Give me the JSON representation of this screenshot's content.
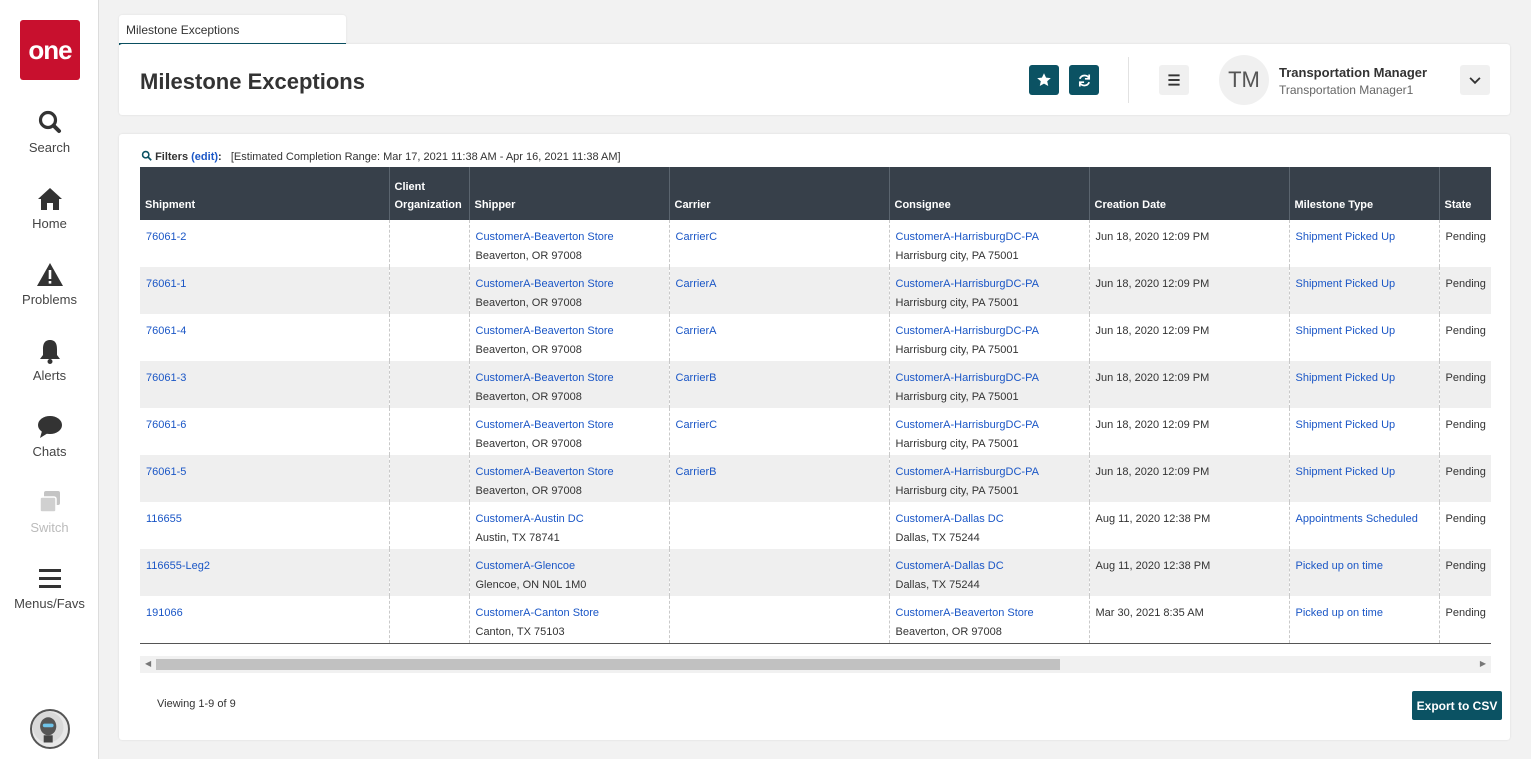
{
  "logo": {
    "text": "one"
  },
  "sidebar": {
    "items": [
      {
        "label": "Search",
        "icon": "search-icon"
      },
      {
        "label": "Home",
        "icon": "home-icon"
      },
      {
        "label": "Problems",
        "icon": "warning-icon"
      },
      {
        "label": "Alerts",
        "icon": "bell-icon"
      },
      {
        "label": "Chats",
        "icon": "chat-icon"
      },
      {
        "label": "Switch",
        "icon": "switch-icon"
      },
      {
        "label": "Menus/Favs",
        "icon": "menu-icon"
      }
    ]
  },
  "tab": {
    "label": "Milestone Exceptions"
  },
  "header": {
    "title": "Milestone Exceptions",
    "user": {
      "initials": "TM",
      "role": "Transportation Manager",
      "name": "Transportation Manager1"
    }
  },
  "filters": {
    "label": "Filters",
    "edit": "(edit)",
    "colon": ":",
    "range": "[Estimated Completion Range: Mar 17, 2021 11:38 AM - Apr 16, 2021 11:38 AM]"
  },
  "table": {
    "columns": [
      "Shipment",
      "Client Organization",
      "Shipper",
      "Carrier",
      "Consignee",
      "Creation Date",
      "Milestone Type",
      "State"
    ],
    "rows": [
      {
        "shipment": "76061-2",
        "client": "",
        "shipper": "CustomerA-Beaverton Store",
        "shipper_loc": "Beaverton, OR 97008",
        "carrier": "CarrierC",
        "consignee": "CustomerA-HarrisburgDC-PA",
        "consignee_loc": "Harrisburg city, PA 75001",
        "created": "Jun 18, 2020 12:09 PM",
        "milestone": "Shipment Picked Up",
        "state": "Pending"
      },
      {
        "shipment": "76061-1",
        "client": "",
        "shipper": "CustomerA-Beaverton Store",
        "shipper_loc": "Beaverton, OR 97008",
        "carrier": "CarrierA",
        "consignee": "CustomerA-HarrisburgDC-PA",
        "consignee_loc": "Harrisburg city, PA 75001",
        "created": "Jun 18, 2020 12:09 PM",
        "milestone": "Shipment Picked Up",
        "state": "Pending"
      },
      {
        "shipment": "76061-4",
        "client": "",
        "shipper": "CustomerA-Beaverton Store",
        "shipper_loc": "Beaverton, OR 97008",
        "carrier": "CarrierA",
        "consignee": "CustomerA-HarrisburgDC-PA",
        "consignee_loc": "Harrisburg city, PA 75001",
        "created": "Jun 18, 2020 12:09 PM",
        "milestone": "Shipment Picked Up",
        "state": "Pending"
      },
      {
        "shipment": "76061-3",
        "client": "",
        "shipper": "CustomerA-Beaverton Store",
        "shipper_loc": "Beaverton, OR 97008",
        "carrier": "CarrierB",
        "consignee": "CustomerA-HarrisburgDC-PA",
        "consignee_loc": "Harrisburg city, PA 75001",
        "created": "Jun 18, 2020 12:09 PM",
        "milestone": "Shipment Picked Up",
        "state": "Pending"
      },
      {
        "shipment": "76061-6",
        "client": "",
        "shipper": "CustomerA-Beaverton Store",
        "shipper_loc": "Beaverton, OR 97008",
        "carrier": "CarrierC",
        "consignee": "CustomerA-HarrisburgDC-PA",
        "consignee_loc": "Harrisburg city, PA 75001",
        "created": "Jun 18, 2020 12:09 PM",
        "milestone": "Shipment Picked Up",
        "state": "Pending"
      },
      {
        "shipment": "76061-5",
        "client": "",
        "shipper": "CustomerA-Beaverton Store",
        "shipper_loc": "Beaverton, OR 97008",
        "carrier": "CarrierB",
        "consignee": "CustomerA-HarrisburgDC-PA",
        "consignee_loc": "Harrisburg city, PA 75001",
        "created": "Jun 18, 2020 12:09 PM",
        "milestone": "Shipment Picked Up",
        "state": "Pending"
      },
      {
        "shipment": "116655",
        "client": "",
        "shipper": "CustomerA-Austin DC",
        "shipper_loc": "Austin, TX 78741",
        "carrier": "",
        "consignee": "CustomerA-Dallas DC",
        "consignee_loc": "Dallas, TX 75244",
        "created": "Aug 11, 2020 12:38 PM",
        "milestone": "Appointments Scheduled",
        "state": "Pending"
      },
      {
        "shipment": "116655-Leg2",
        "client": "",
        "shipper": "CustomerA-Glencoe",
        "shipper_loc": "Glencoe, ON N0L 1M0",
        "carrier": "",
        "consignee": "CustomerA-Dallas DC",
        "consignee_loc": "Dallas, TX 75244",
        "created": "Aug 11, 2020 12:38 PM",
        "milestone": "Picked up on time",
        "state": "Pending"
      },
      {
        "shipment": "191066",
        "client": "",
        "shipper": "CustomerA-Canton Store",
        "shipper_loc": "Canton, TX 75103",
        "carrier": "",
        "consignee": "CustomerA-Beaverton Store",
        "consignee_loc": "Beaverton, OR 97008",
        "created": "Mar 30, 2021 8:35 AM",
        "milestone": "Picked up on time",
        "state": "Pending"
      }
    ]
  },
  "footer": {
    "viewing": "Viewing 1-9 of 9",
    "export_label": "Export to CSV"
  },
  "colors": {
    "brand": "#c8102e",
    "accent": "#0b5263",
    "header": "#37404a",
    "link": "#1a56c6"
  }
}
